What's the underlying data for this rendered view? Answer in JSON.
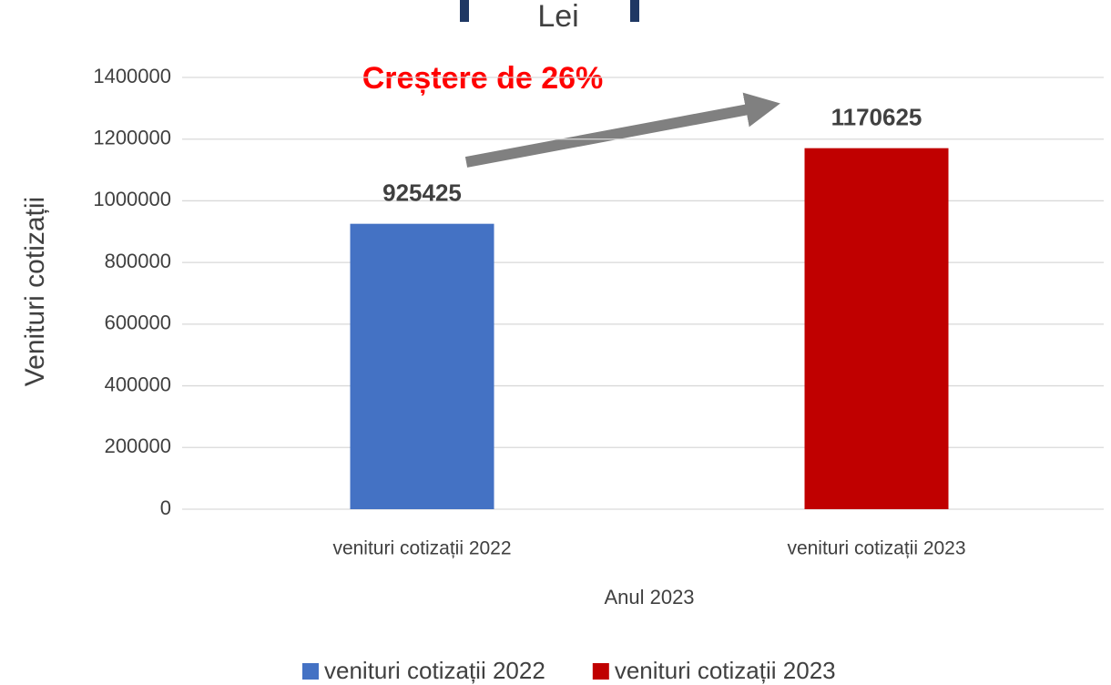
{
  "chart_data": {
    "type": "bar",
    "title": "Lei",
    "annotation": "Creștere de 26%",
    "y_label": "Venituri cotizații",
    "x_label": "Anul 2023",
    "categories": [
      "venituri cotizații 2022",
      "venituri cotizații 2023"
    ],
    "series": [
      {
        "name": "venituri cotizații 2022",
        "color": "#4472c4",
        "values": [
          925425,
          null
        ]
      },
      {
        "name": "venituri cotizații 2023",
        "color": "#c00000",
        "values": [
          null,
          1170625
        ]
      }
    ],
    "ylim": [
      0,
      1400000
    ],
    "yticks": [
      0,
      200000,
      400000,
      600000,
      800000,
      1000000,
      1200000,
      1400000
    ],
    "grid": true,
    "legend": "bottom"
  }
}
